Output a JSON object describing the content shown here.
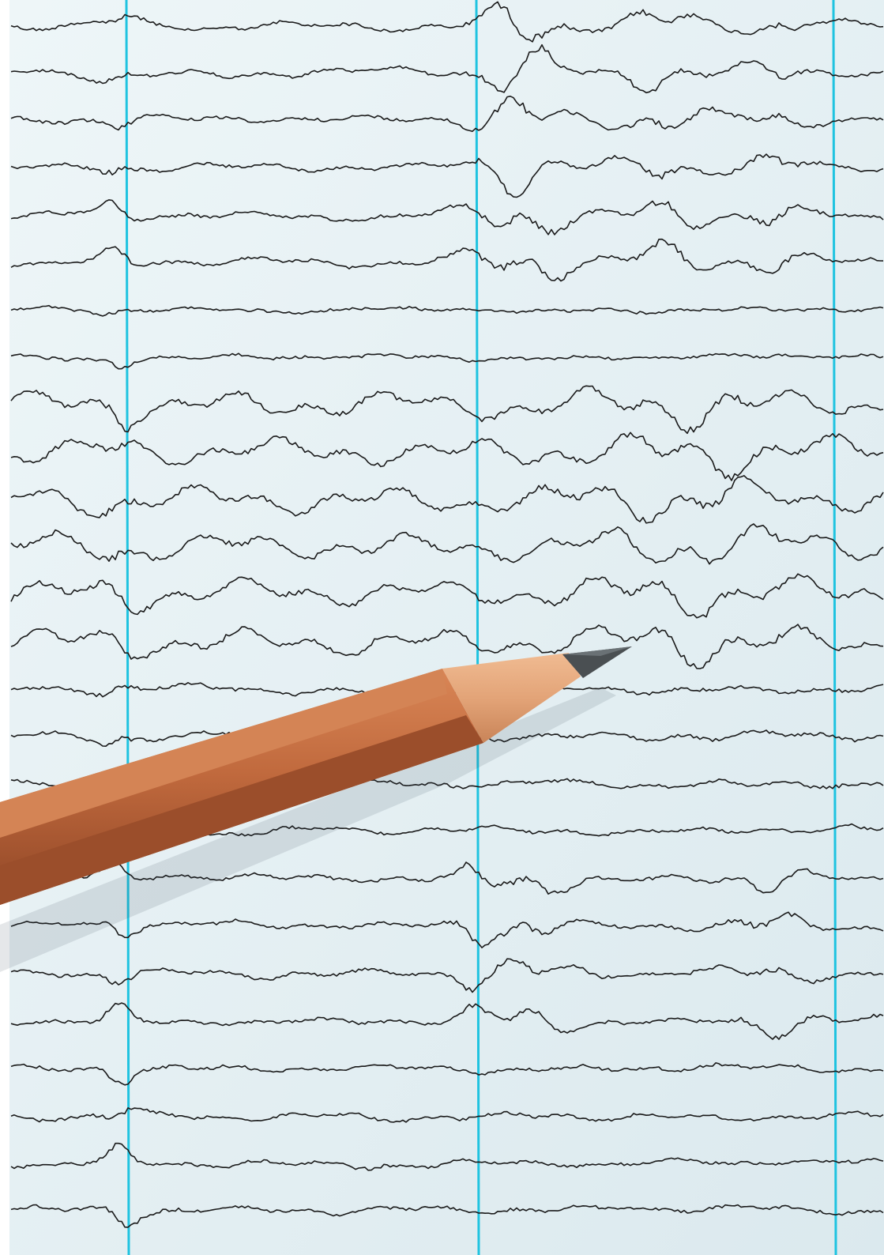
{
  "photo": {
    "paper_color": "#e6f1f4",
    "grid_line_color": "#1fc3e0",
    "trace_color": "#1a1a1a",
    "trace_count": 26,
    "pencil": {
      "wood_color": "#c0693d",
      "wood_shadow_color": "#8f4626",
      "cone_color": "#e3a478",
      "graphite_color": "#4a4f52"
    }
  }
}
